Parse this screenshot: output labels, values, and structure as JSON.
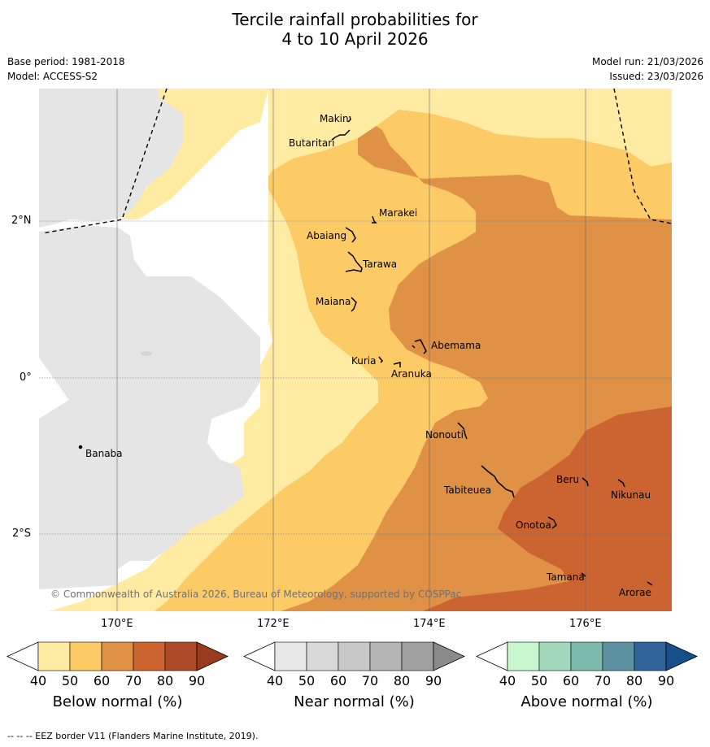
{
  "header": {
    "title_line1": "Tercile rainfall probabilities for",
    "title_line2": "4 to 10 April 2026",
    "base_period": "Base period: 1981-2018",
    "model": "Model: ACCESS-S2",
    "model_run": "Model run: 21/03/2026",
    "issued": "Issued: 23/03/2026"
  },
  "map": {
    "copyright": "© Commonwealth of Australia 2026, Bureau of Meteorology, supported by COSPPac",
    "lat_ticks": [
      "2°N",
      "0°",
      "2°S"
    ],
    "lon_ticks": [
      "170°E",
      "172°E",
      "174°E",
      "176°E"
    ],
    "islands": [
      "Makin",
      "Butaritari",
      "Marakei",
      "Abaiang",
      "Tarawa",
      "Maiana",
      "Abemama",
      "Kuria",
      "Aranuka",
      "Nonouti",
      "Banaba",
      "Tabiteuea",
      "Beru",
      "Nikunau",
      "Onotoa",
      "Tamana",
      "Arorae"
    ],
    "colors": {
      "land_grey": "#e5e5e5",
      "below_50": "#ffeba1",
      "below_60": "#fdcb66",
      "below_70": "#df9145",
      "below_80": "#cc6432",
      "above_50": "#c8f4c8"
    }
  },
  "colorbars": [
    {
      "label": "Below normal (%)",
      "ticks": [
        "40",
        "50",
        "60",
        "70",
        "80",
        "90"
      ],
      "colors": [
        "#ffeba1",
        "#fdcb66",
        "#df9145",
        "#cc6432",
        "#ad4a28"
      ],
      "extend_color": "#9a3a1e"
    },
    {
      "label": "Near normal (%)",
      "ticks": [
        "40",
        "50",
        "60",
        "70",
        "80",
        "90"
      ],
      "colors": [
        "#e8e8e8",
        "#d8d8d8",
        "#c8c8c8",
        "#b4b4b4",
        "#a0a0a0"
      ],
      "extend_color": "#8a8a8a"
    },
    {
      "label": "Above normal (%)",
      "ticks": [
        "40",
        "50",
        "60",
        "70",
        "80",
        "90"
      ],
      "colors": [
        "#c8f7cf",
        "#a2d8bb",
        "#7db8ad",
        "#5c91a0",
        "#2f6399"
      ],
      "extend_color": "#184f8a"
    }
  ],
  "footer": {
    "text": "-- -- -- EEZ border V11 (Flanders Marine Institute, 2019)."
  }
}
